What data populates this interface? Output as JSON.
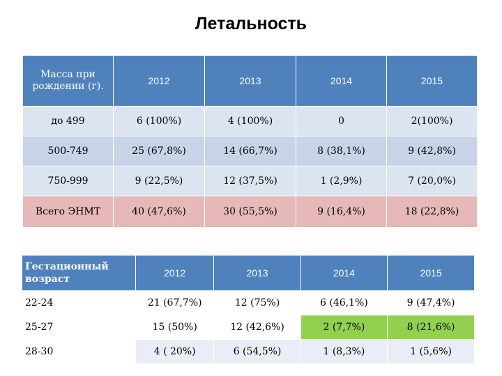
{
  "title": "Летальность",
  "mass_table": {
    "header": [
      "Масса при рождении (г).",
      "2012",
      "2013",
      "2014",
      "2015"
    ],
    "rows": [
      [
        "до 499",
        "6 (100%)",
        "4 (100%)",
        "0",
        "2(100%)"
      ],
      [
        "500-749",
        "25 (67,8%)",
        "14 (66,7%)",
        "8 (38,1%)",
        "9 (42,8%)"
      ],
      [
        "750-999",
        "9 (22,5%)",
        "12 (37,5%)",
        "1 (2,9%)",
        "7 (20,0%)"
      ],
      [
        "Всего ЭНМТ",
        "40 (47,6%)",
        "30 (55,5%)",
        "9 (16,4%)",
        "18 (22,8%)"
      ]
    ]
  },
  "gest_table": {
    "header": [
      "Гестационный возраст",
      "2012",
      "2013",
      "2014",
      "2015"
    ],
    "rows": [
      [
        "22-24",
        "21 (67,7%)",
        "12 (75%)",
        "6 (46,1%)",
        "9 (47,4%)"
      ],
      [
        "25-27",
        "15 (50%)",
        "12 (42,6%)",
        "2 (7,7%)",
        "8 (21,6%)"
      ],
      [
        "28-30",
        "4 ( 20%)",
        "6 (54,5%)",
        "1 (8,3%)",
        "1 (5,6%)"
      ]
    ],
    "highlight_color": "#92d050"
  }
}
